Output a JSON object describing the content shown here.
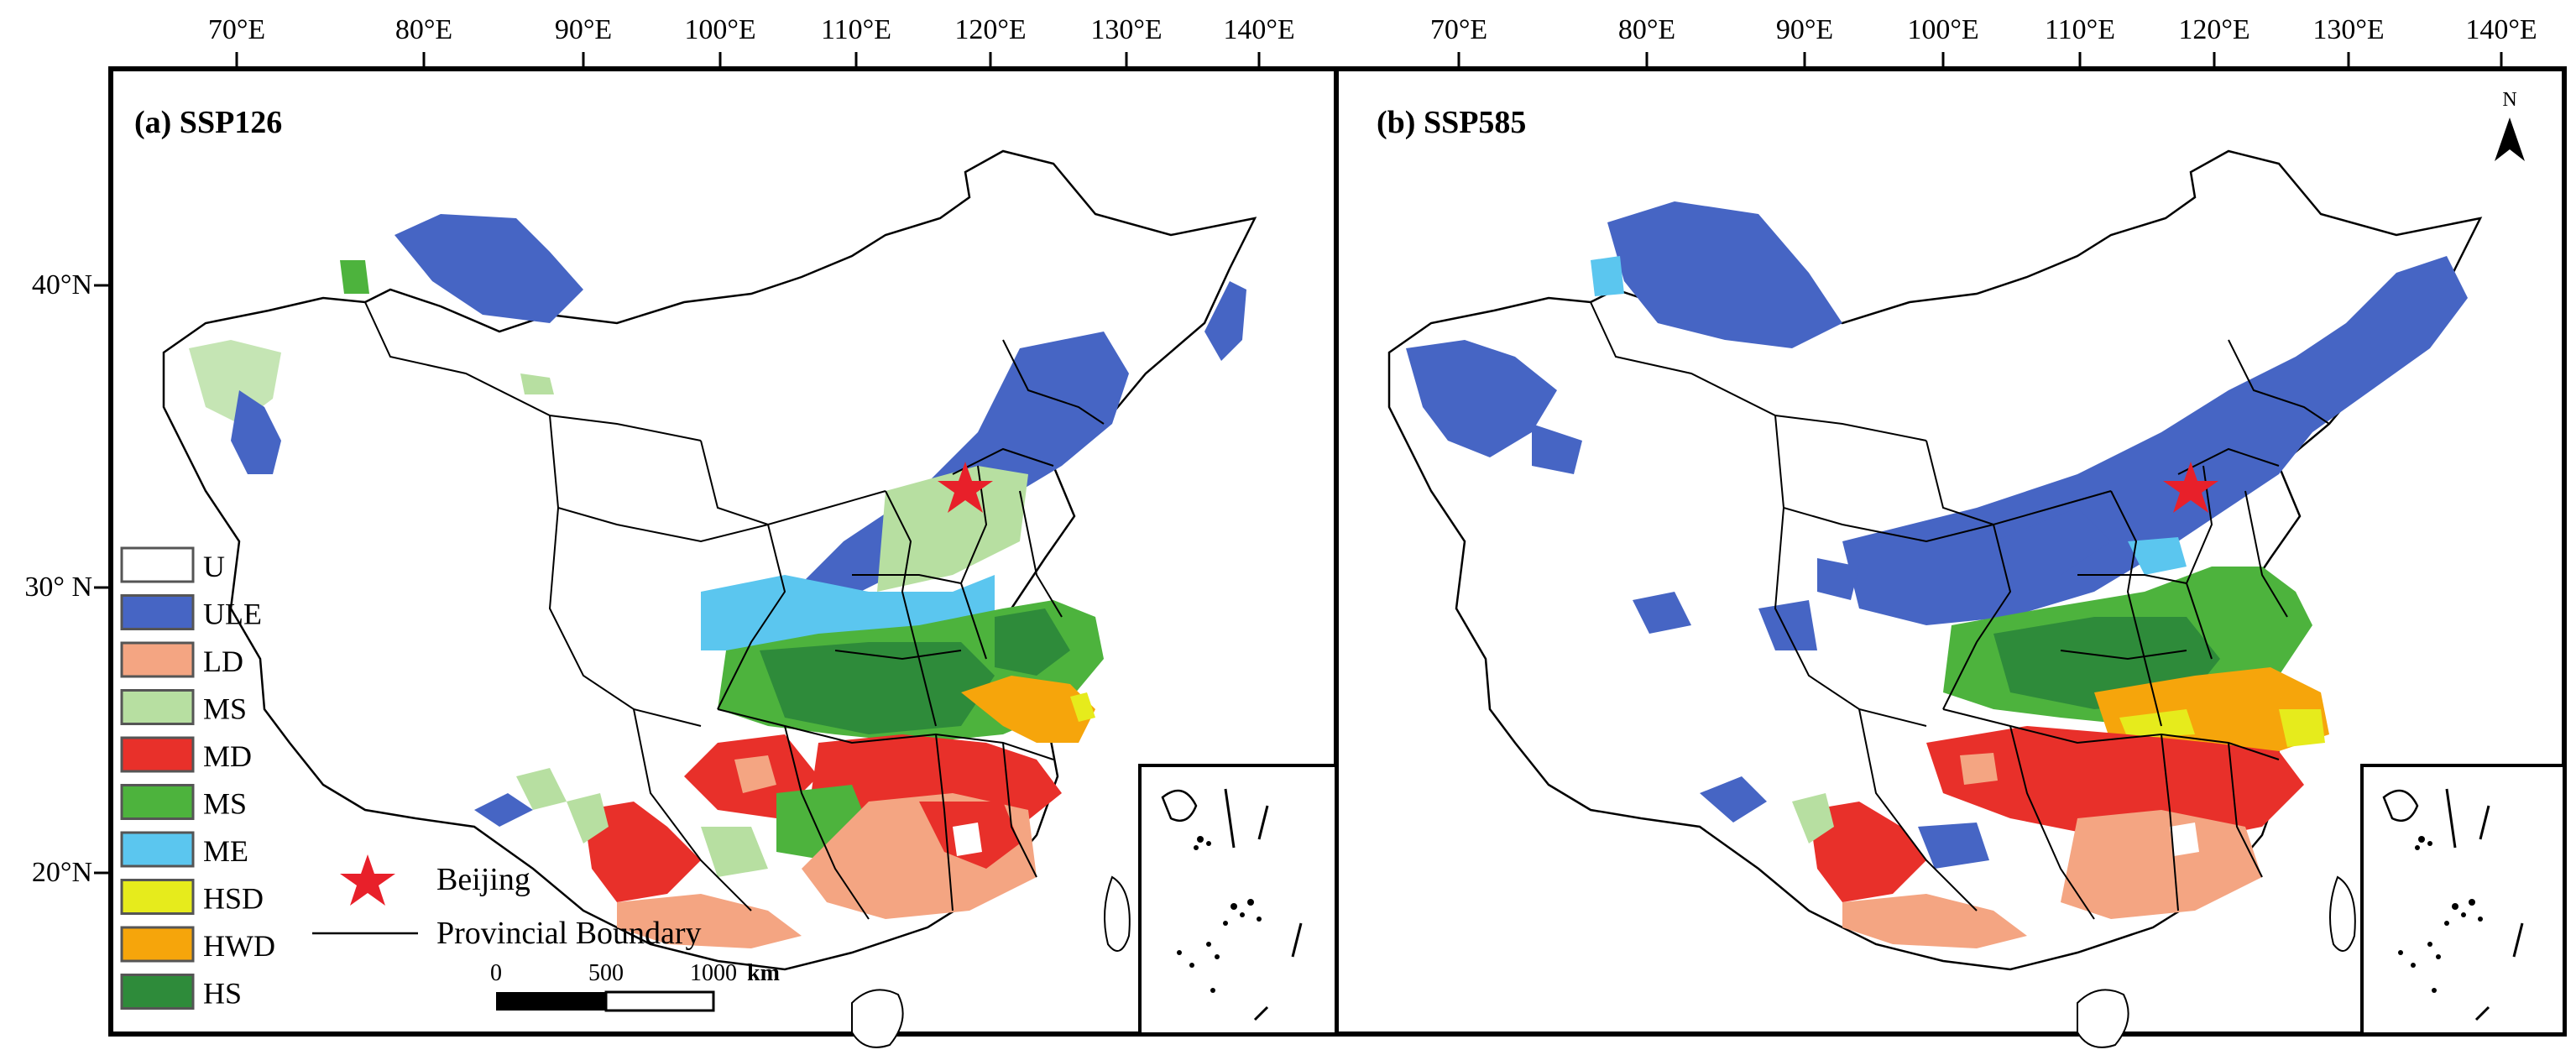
{
  "top_axis": {
    "lon_labels": [
      "70°E",
      "80°E",
      "90°E",
      "100°E",
      "110°E",
      "120°E",
      "130°E",
      "140°E"
    ]
  },
  "left_axis": {
    "lat_labels": [
      "40°N",
      "30° N",
      "20°N"
    ]
  },
  "panels": [
    {
      "title": "(a) SSP126"
    },
    {
      "title": "(b) SSP585"
    }
  ],
  "north_arrow": {
    "label": "N"
  },
  "legend": {
    "items": [
      {
        "code": "U",
        "color": "#ffffff"
      },
      {
        "code": "ULE",
        "color": "#4665c4"
      },
      {
        "code": "LD",
        "color": "#f4a582"
      },
      {
        "code": "MS",
        "color": "#b7dfa1"
      },
      {
        "code": "MD",
        "color": "#e8302a"
      },
      {
        "code": "MS",
        "color": "#4db33d"
      },
      {
        "code": "ME",
        "color": "#5bc6ef"
      },
      {
        "code": "HSD",
        "color": "#e6eb1c"
      },
      {
        "code": "HWD",
        "color": "#f6a50b"
      },
      {
        "code": "HS",
        "color": "#2e8b3a"
      }
    ],
    "beijing_label": "Beijing",
    "boundary_label": "Provincial Boundary",
    "star_color": "#e8202a"
  },
  "scale_bar": {
    "ticks": [
      "0",
      "500",
      "1000"
    ],
    "unit": "km"
  }
}
